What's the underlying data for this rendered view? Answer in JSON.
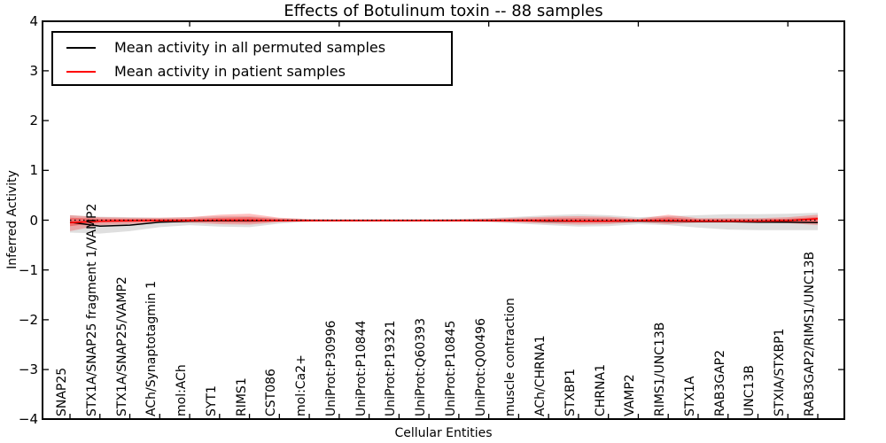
{
  "title": "Effects of Botulinum toxin -- 88 samples",
  "legend": {
    "items": [
      {
        "label": "Mean activity in all permuted samples",
        "color": "#000000"
      },
      {
        "label": "Mean activity in patient samples",
        "color": "#ff0000"
      }
    ],
    "position": "upper left"
  },
  "chart_data": {
    "type": "line",
    "title": "Effects of Botulinum toxin -- 88 samples",
    "xlabel": "Cellular Entities",
    "ylabel": "Inferred Activity",
    "ylim": [
      -4,
      4
    ],
    "yticks": [
      4,
      3,
      2,
      1,
      0,
      -1,
      -2,
      -3,
      -4
    ],
    "ytick_labels": [
      "4",
      "3",
      "2",
      "1",
      "0",
      "−1",
      "−2",
      "−3",
      "−4"
    ],
    "top_tick_indices": [
      4,
      9,
      14,
      19,
      24
    ],
    "grid": false,
    "zero_line": {
      "y": 0,
      "style": "dotted",
      "color": "#000000"
    },
    "categories": [
      "SNAP25",
      "STX1A/SNAP25 fragment 1/VAMP2",
      "STX1A/SNAP25/VAMP2",
      "ACh/Synaptotagmin 1",
      "mol:ACh",
      "SYT1",
      "RIMS1",
      "CST086",
      "mol:Ca2+",
      "UniProt:P30996",
      "UniProt:P10844",
      "UniProt:P19321",
      "UniProt:Q60393",
      "UniProt:P10845",
      "UniProt:Q00496",
      "muscle contraction",
      "ACh/CHRNA1",
      "STXBP1",
      "CHRNA1",
      "VAMP2",
      "RIMS1/UNC13B",
      "STX1A",
      "RAB3GAP2",
      "UNC13B",
      "STXIA/STXBP1",
      "RAB3GAP2/RIMS1/UNC13B"
    ],
    "series": [
      {
        "name": "Mean activity in all permuted samples",
        "color": "#000000",
        "width": 1.5,
        "values": [
          -0.04,
          -0.12,
          -0.1,
          -0.04,
          -0.02,
          -0.01,
          -0.01,
          -0.01,
          -0.01,
          -0.01,
          -0.01,
          -0.01,
          -0.01,
          -0.01,
          -0.01,
          -0.01,
          -0.02,
          -0.02,
          -0.02,
          -0.02,
          -0.02,
          -0.03,
          -0.03,
          -0.04,
          -0.04,
          -0.05
        ]
      },
      {
        "name": "Mean activity in patient samples",
        "color": "#ff0000",
        "width": 1.6,
        "values": [
          -0.05,
          -0.02,
          -0.01,
          -0.01,
          -0.01,
          0.0,
          0.0,
          -0.01,
          -0.01,
          -0.01,
          -0.01,
          -0.01,
          -0.01,
          -0.01,
          -0.01,
          -0.01,
          -0.01,
          -0.02,
          -0.02,
          -0.01,
          -0.01,
          -0.02,
          -0.02,
          -0.02,
          -0.01,
          0.03
        ]
      }
    ],
    "bands": [
      {
        "name": "permuted-samples-range",
        "color": "rgba(128,128,128,0.25)",
        "upper": [
          0.1,
          0.07,
          0.06,
          0.05,
          0.06,
          0.08,
          0.08,
          0.04,
          0.025,
          0.02,
          0.02,
          0.02,
          0.02,
          0.025,
          0.04,
          0.07,
          0.1,
          0.12,
          0.1,
          0.06,
          0.08,
          0.1,
          0.12,
          0.12,
          0.13,
          0.15
        ],
        "lower": [
          -0.25,
          -0.27,
          -0.22,
          -0.14,
          -0.1,
          -0.13,
          -0.14,
          -0.07,
          -0.03,
          -0.02,
          -0.02,
          -0.02,
          -0.02,
          -0.025,
          -0.04,
          -0.07,
          -0.1,
          -0.13,
          -0.12,
          -0.08,
          -0.1,
          -0.15,
          -0.19,
          -0.2,
          -0.2,
          -0.2
        ]
      },
      {
        "name": "patient-samples-range-outer",
        "color": "rgba(255,0,0,0.25)",
        "upper": [
          0.1,
          0.06,
          0.05,
          0.05,
          0.06,
          0.11,
          0.13,
          0.05,
          0.02,
          0.015,
          0.015,
          0.015,
          0.015,
          0.02,
          0.03,
          0.05,
          0.07,
          0.08,
          0.07,
          0.03,
          0.11,
          0.04,
          0.04,
          0.04,
          0.06,
          0.11
        ],
        "lower": [
          -0.22,
          -0.1,
          -0.08,
          -0.05,
          -0.05,
          -0.08,
          -0.09,
          -0.04,
          -0.02,
          -0.015,
          -0.015,
          -0.015,
          -0.015,
          -0.02,
          -0.03,
          -0.05,
          -0.07,
          -0.09,
          -0.08,
          -0.04,
          -0.08,
          -0.05,
          -0.05,
          -0.05,
          -0.06,
          -0.1
        ]
      },
      {
        "name": "patient-samples-range-inner",
        "color": "rgba(255,0,0,0.35)",
        "upper": [
          0.05,
          0.03,
          0.025,
          0.025,
          0.03,
          0.05,
          0.06,
          0.025,
          0.01,
          0.008,
          0.008,
          0.008,
          0.008,
          0.01,
          0.015,
          0.025,
          0.035,
          0.04,
          0.035,
          0.015,
          0.055,
          0.02,
          0.02,
          0.02,
          0.03,
          0.06
        ],
        "lower": [
          -0.12,
          -0.05,
          -0.04,
          -0.025,
          -0.025,
          -0.04,
          -0.05,
          -0.02,
          -0.01,
          -0.008,
          -0.008,
          -0.008,
          -0.008,
          -0.01,
          -0.015,
          -0.025,
          -0.035,
          -0.045,
          -0.04,
          -0.02,
          -0.04,
          -0.025,
          -0.025,
          -0.025,
          -0.03,
          -0.04
        ]
      }
    ]
  }
}
